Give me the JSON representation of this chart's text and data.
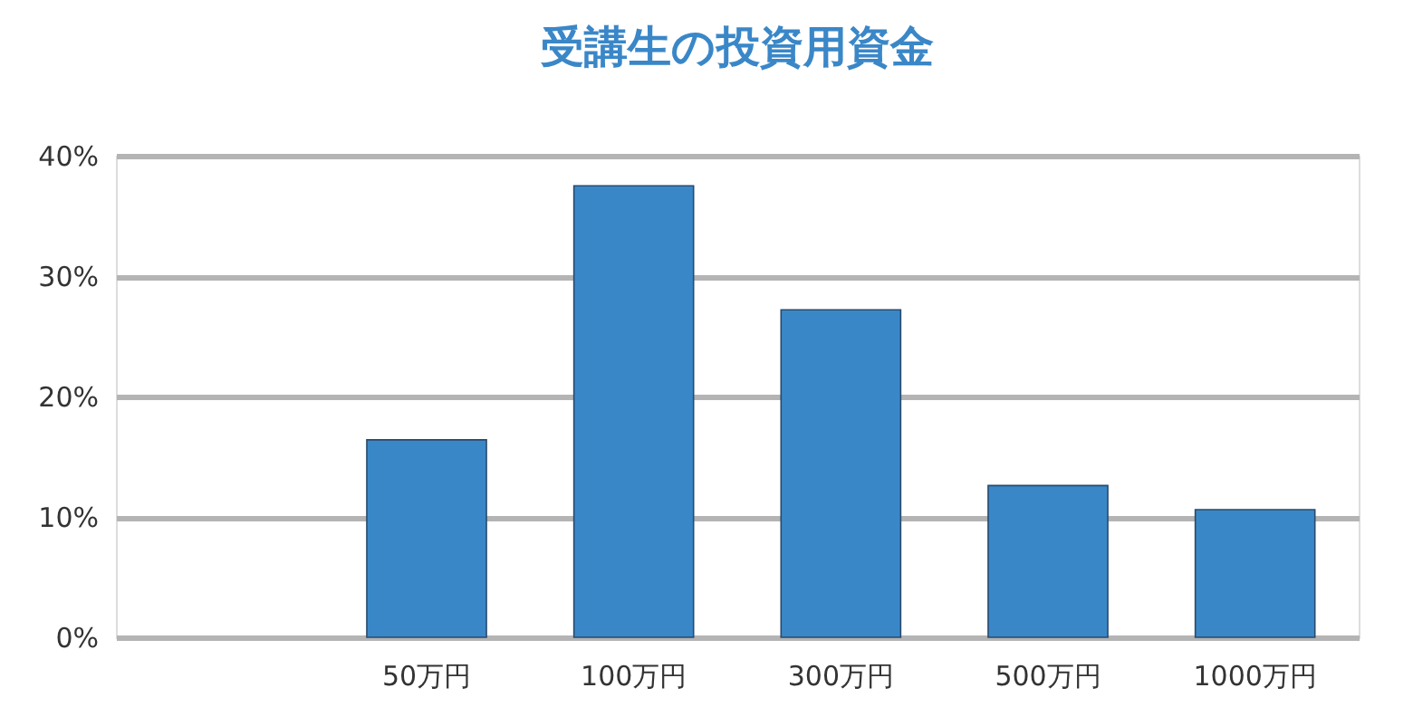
{
  "chart_data": {
    "type": "bar",
    "title": "受講生の投資用資金",
    "categories": [
      null,
      "50万円",
      "100万円",
      "300万円",
      "500万円",
      "1000万円"
    ],
    "values": [
      null,
      16.4,
      37.5,
      27.2,
      12.6,
      10.6
    ],
    "color": "#3a87c8",
    "ylim": [
      0,
      40
    ],
    "yticks": [
      {
        "value": 0,
        "label": "0%"
      },
      {
        "value": 10,
        "label": "10%"
      },
      {
        "value": 20,
        "label": "20%"
      },
      {
        "value": 30,
        "label": "30%"
      },
      {
        "value": 40,
        "label": "40%"
      }
    ],
    "grid": "y"
  }
}
